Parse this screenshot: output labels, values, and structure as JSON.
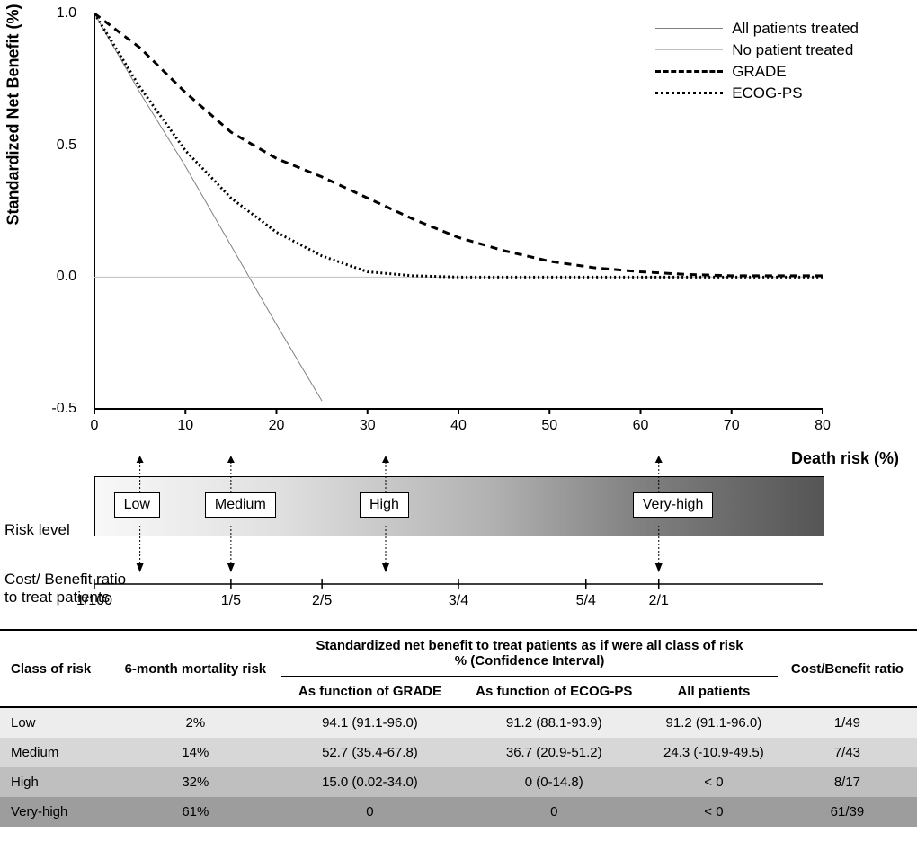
{
  "chart": {
    "type": "line",
    "y_label": "Standardized Net Benefit (%)",
    "x_label": "Death risk (%)",
    "x_ticks": [
      0,
      10,
      20,
      30,
      40,
      50,
      60,
      70,
      80
    ],
    "y_ticks": [
      -0.5,
      0.0,
      0.5,
      1.0
    ],
    "xlim": [
      0,
      80
    ],
    "ylim": [
      -0.5,
      1.0
    ],
    "background_color": "#ffffff",
    "axis_color": "#000000",
    "tick_font_size": 16,
    "label_font_size": 18,
    "series": {
      "all_treated": {
        "label": "All patients treated",
        "color": "#808080",
        "dash": "solid",
        "width": 1,
        "points": [
          {
            "x": 0,
            "y": 1.0
          },
          {
            "x": 5,
            "y": 0.7
          },
          {
            "x": 10,
            "y": 0.42
          },
          {
            "x": 15,
            "y": 0.12
          },
          {
            "x": 20,
            "y": -0.18
          },
          {
            "x": 25,
            "y": -0.47
          }
        ]
      },
      "none_treated": {
        "label": "No patient treated",
        "color": "#c0c0c0",
        "dash": "solid",
        "width": 1,
        "points": [
          {
            "x": 0,
            "y": 0.0
          },
          {
            "x": 80,
            "y": 0.0
          }
        ]
      },
      "grade": {
        "label": "GRADE",
        "color": "#000000",
        "dash": "8,6",
        "width": 3,
        "points": [
          {
            "x": 0,
            "y": 1.0
          },
          {
            "x": 5,
            "y": 0.87
          },
          {
            "x": 10,
            "y": 0.7
          },
          {
            "x": 15,
            "y": 0.55
          },
          {
            "x": 20,
            "y": 0.45
          },
          {
            "x": 25,
            "y": 0.38
          },
          {
            "x": 30,
            "y": 0.3
          },
          {
            "x": 35,
            "y": 0.22
          },
          {
            "x": 40,
            "y": 0.15
          },
          {
            "x": 45,
            "y": 0.1
          },
          {
            "x": 50,
            "y": 0.06
          },
          {
            "x": 55,
            "y": 0.035
          },
          {
            "x": 60,
            "y": 0.02
          },
          {
            "x": 65,
            "y": 0.01
          },
          {
            "x": 70,
            "y": 0.005
          },
          {
            "x": 75,
            "y": 0.005
          },
          {
            "x": 80,
            "y": 0.005
          }
        ]
      },
      "ecog": {
        "label": "ECOG-PS",
        "color": "#000000",
        "dash": "2,3",
        "width": 3,
        "points": [
          {
            "x": 0,
            "y": 1.0
          },
          {
            "x": 5,
            "y": 0.72
          },
          {
            "x": 10,
            "y": 0.48
          },
          {
            "x": 15,
            "y": 0.3
          },
          {
            "x": 20,
            "y": 0.17
          },
          {
            "x": 25,
            "y": 0.08
          },
          {
            "x": 30,
            "y": 0.02
          },
          {
            "x": 35,
            "y": 0.005
          },
          {
            "x": 40,
            "y": 0.0
          },
          {
            "x": 80,
            "y": 0.0
          }
        ]
      }
    },
    "legend_position": "top-right"
  },
  "risk_band": {
    "label_left": "Risk level",
    "gradient_from": "#f8f8f8",
    "gradient_to": "#555555",
    "levels": [
      {
        "x": 5,
        "label": "Low"
      },
      {
        "x": 15,
        "label": "Medium"
      },
      {
        "x": 32,
        "label": "High"
      },
      {
        "x": 62,
        "label": "Very-high"
      }
    ]
  },
  "cost_benefit": {
    "label_left": "Cost/ Benefit ratio\nto treat patients",
    "ticks": [
      {
        "x": 0,
        "label": "1/100"
      },
      {
        "x": 15,
        "label": "1/5"
      },
      {
        "x": 25,
        "label": "2/5"
      },
      {
        "x": 40,
        "label": "3/4"
      },
      {
        "x": 54,
        "label": "5/4"
      },
      {
        "x": 62,
        "label": "2/1"
      }
    ]
  },
  "table": {
    "header": {
      "class_of_risk": "Class of risk",
      "mortality": "6-month mortality risk",
      "snb_header": "Standardized net benefit to treat patients as if were all class of risk\n% (Confidence Interval)",
      "cb_ratio": "Cost/Benefit ratio",
      "snb_grade": "As function of GRADE",
      "snb_ecog": "As function of ECOG-PS",
      "snb_all": "All patients"
    },
    "rows": [
      {
        "risk": "Low",
        "mortality": "2%",
        "grade": "94.1 (91.1-96.0)",
        "ecog": "91.2 (88.1-93.9)",
        "all": "91.2 (91.1-96.0)",
        "cb": "1/49",
        "row_color": "#ededed"
      },
      {
        "risk": "Medium",
        "mortality": "14%",
        "grade": "52.7 (35.4-67.8)",
        "ecog": "36.7 (20.9-51.2)",
        "all": "24.3 (-10.9-49.5)",
        "cb": "7/43",
        "row_color": "#d7d7d7"
      },
      {
        "risk": "High",
        "mortality": "32%",
        "grade": "15.0 (0.02-34.0)",
        "ecog": "0 (0-14.8)",
        "all": "< 0",
        "cb": "8/17",
        "row_color": "#bfbfbf"
      },
      {
        "risk": "Very-high",
        "mortality": "61%",
        "grade": "0",
        "ecog": "0",
        "all": "< 0",
        "cb": "61/39",
        "row_color": "#9d9d9d"
      }
    ]
  }
}
